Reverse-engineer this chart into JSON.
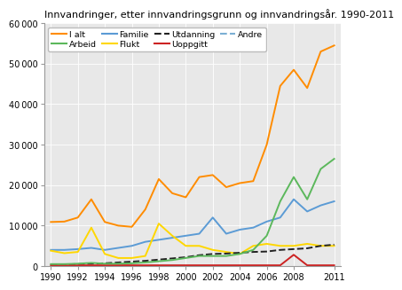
{
  "title": "Innvandringer, etter innvandringsgrunn og innvandringsår. 1990-2011",
  "years": [
    1990,
    1991,
    1992,
    1993,
    1994,
    1995,
    1996,
    1997,
    1998,
    1999,
    2000,
    2001,
    2002,
    2003,
    2004,
    2005,
    2006,
    2007,
    2008,
    2009,
    2010,
    2011
  ],
  "series": {
    "I alt": [
      10900,
      11000,
      12000,
      16500,
      10900,
      10000,
      9700,
      14000,
      21500,
      18000,
      17000,
      22000,
      22500,
      19500,
      20500,
      21000,
      30000,
      44500,
      48500,
      44000,
      53000,
      54500
    ],
    "Arbeid": [
      500,
      500,
      600,
      800,
      600,
      600,
      700,
      900,
      1200,
      1500,
      2000,
      2500,
      2500,
      2500,
      3000,
      4000,
      7500,
      16000,
      22000,
      16500,
      24000,
      26500
    ],
    "Familie": [
      4000,
      4000,
      4200,
      4500,
      4000,
      4500,
      5000,
      6000,
      6500,
      7000,
      7500,
      8000,
      12000,
      8000,
      9000,
      9500,
      11000,
      12000,
      16500,
      13500,
      15000,
      16000
    ],
    "Flukt": [
      3800,
      3200,
      3500,
      9500,
      3000,
      2000,
      2000,
      2500,
      10500,
      7500,
      5000,
      5000,
      4000,
      3500,
      3000,
      5000,
      5500,
      5000,
      5000,
      5500,
      5000,
      5000
    ],
    "Utdanning": [
      300,
      400,
      500,
      600,
      700,
      900,
      1100,
      1300,
      1600,
      1900,
      2200,
      2700,
      3000,
      3100,
      3300,
      3500,
      3600,
      4000,
      4200,
      4400,
      5000,
      5300
    ],
    "Uoppgitt": [
      200,
      200,
      200,
      200,
      200,
      200,
      200,
      200,
      200,
      200,
      200,
      200,
      200,
      200,
      200,
      200,
      200,
      200,
      2800,
      200,
      200,
      200
    ],
    "Andre": [
      -300,
      -300,
      -300,
      -300,
      -300,
      -300,
      -300,
      -300,
      -300,
      -300,
      -300,
      -300,
      -300,
      -300,
      -300,
      -300,
      -300,
      -300,
      -300,
      -300,
      -300,
      -300
    ]
  },
  "colors": {
    "I alt": "#FF8C00",
    "Arbeid": "#5CB85C",
    "Familie": "#5B9BD5",
    "Flukt": "#FFD700",
    "Utdanning": "#222222",
    "Uoppgitt": "#CC2222",
    "Andre": "#7BAFD4"
  },
  "linestyles": {
    "I alt": "solid",
    "Arbeid": "solid",
    "Familie": "solid",
    "Flukt": "solid",
    "Utdanning": "dashed",
    "Uoppgitt": "solid",
    "Andre": "dashed"
  },
  "legend_order": [
    "I alt",
    "Arbeid",
    "Familie",
    "Flukt",
    "Utdanning",
    "Uoppgitt",
    "Andre"
  ],
  "ylim": [
    0,
    60000
  ],
  "yticks": [
    0,
    10000,
    20000,
    30000,
    40000,
    50000,
    60000
  ],
  "xticks": [
    1990,
    1992,
    1994,
    1996,
    1998,
    2000,
    2002,
    2004,
    2006,
    2008,
    2011
  ],
  "xlim": [
    1989.5,
    2011.5
  ],
  "background_color": "#ffffff",
  "plot_bg_color": "#e8e8e8"
}
